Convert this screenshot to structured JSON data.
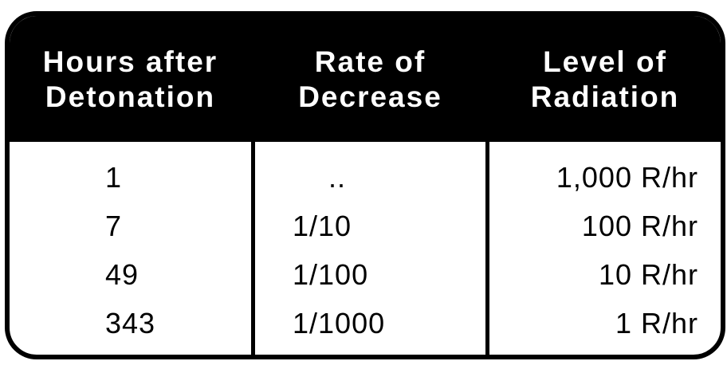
{
  "header": {
    "col1": [
      "Hours after",
      "Detonation"
    ],
    "col2": [
      "Rate of",
      "Decrease"
    ],
    "col3": [
      "Level of",
      "Radiation"
    ]
  },
  "rows": [
    {
      "hours": "1",
      "rate": "..",
      "level": "1,000 R/hr"
    },
    {
      "hours": "7",
      "rate": "1/10",
      "level": "100 R/hr"
    },
    {
      "hours": "49",
      "rate": "1/100",
      "level": "10 R/hr"
    },
    {
      "hours": "343",
      "rate": "1/1000",
      "level": "1 R/hr"
    }
  ]
}
